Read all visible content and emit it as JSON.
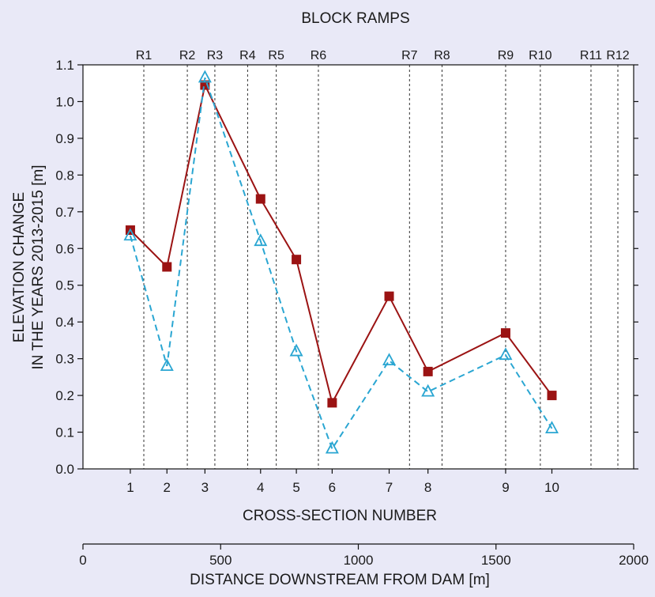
{
  "chart_data": {
    "type": "line",
    "title": "BLOCK  RAMPS",
    "xlabel": "CROSS-SECTION  NUMBER",
    "ylabel_line1": "ELEVATION CHANGE",
    "ylabel_line2": "IN THE YEARS 2013-2015 [m]",
    "ylim": [
      0,
      1.1
    ],
    "yticks": [
      "0.0",
      "0.1",
      "0.2",
      "0.3",
      "0.4",
      "0.5",
      "0.6",
      "0.7",
      "0.8",
      "0.9",
      "1.0",
      "1.1"
    ],
    "distance_axis": {
      "label": "DISTANCE  DOWNSTREAM  FROM  DAM  [m]",
      "range": [
        0,
        2000
      ],
      "ticks": [
        0,
        500,
        1000,
        1500,
        2000
      ]
    },
    "cross_sections": [
      {
        "label": "1",
        "distance": 172
      },
      {
        "label": "2",
        "distance": 305
      },
      {
        "label": "3",
        "distance": 443
      },
      {
        "label": "4",
        "distance": 645
      },
      {
        "label": "5",
        "distance": 775
      },
      {
        "label": "6",
        "distance": 905
      },
      {
        "label": "7",
        "distance": 1112
      },
      {
        "label": "8",
        "distance": 1253
      },
      {
        "label": "9",
        "distance": 1535
      },
      {
        "label": "10",
        "distance": 1703
      }
    ],
    "block_ramps": [
      {
        "label": "R1",
        "distance": 221
      },
      {
        "label": "R2",
        "distance": 379
      },
      {
        "label": "R3",
        "distance": 479
      },
      {
        "label": "R4",
        "distance": 598
      },
      {
        "label": "R5",
        "distance": 702
      },
      {
        "label": "R6",
        "distance": 855
      },
      {
        "label": "R7",
        "distance": 1186
      },
      {
        "label": "R8",
        "distance": 1304
      },
      {
        "label": "R9",
        "distance": 1535
      },
      {
        "label": "R10",
        "distance": 1661
      },
      {
        "label": "R11",
        "distance": 1845
      },
      {
        "label": "R12",
        "distance": 2045
      }
    ],
    "series": [
      {
        "marker": "square",
        "line": "solid",
        "color": "#9b1313",
        "values": [
          0.65,
          0.55,
          1.045,
          0.735,
          0.57,
          0.18,
          0.47,
          0.265,
          0.37,
          0.2
        ]
      },
      {
        "marker": "triangle",
        "line": "dashed",
        "color": "#2aa6d2",
        "values": [
          0.635,
          0.28,
          1.065,
          0.62,
          0.32,
          0.055,
          0.295,
          0.21,
          0.31,
          0.11
        ]
      }
    ],
    "grid": false
  }
}
